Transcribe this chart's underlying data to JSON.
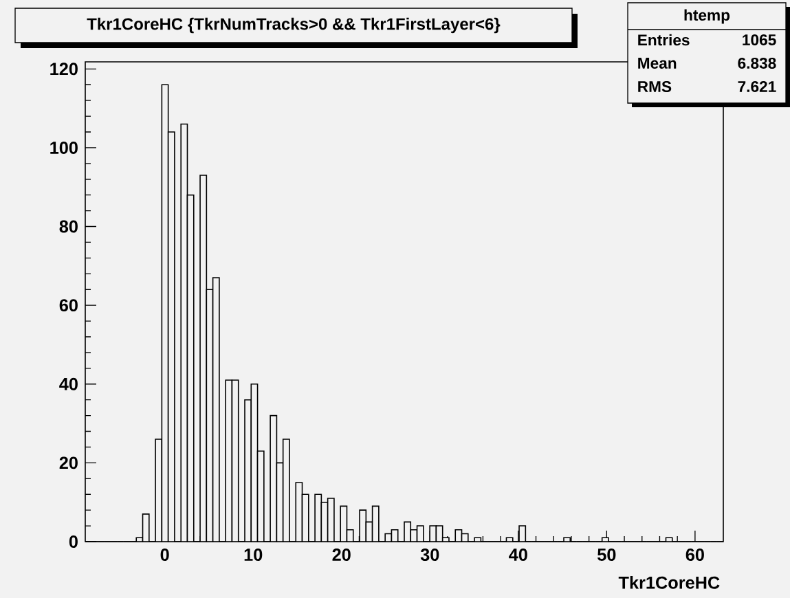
{
  "chart_data": {
    "type": "histogram",
    "title": "Tkr1CoreHC {TkrNumTracks>0 && Tkr1FirstLayer<6}",
    "xlabel": "Tkr1CoreHC",
    "color": "#000000",
    "bins": [
      -9,
      -8.278,
      -7.556,
      -6.834,
      -6.112,
      -5.39,
      -4.668,
      -3.946,
      -3.224,
      -2.502,
      -1.78,
      -1.058,
      -0.336,
      0.386,
      1.108,
      1.83,
      2.552,
      3.274,
      3.996,
      4.718,
      5.44,
      6.162,
      6.884,
      7.606,
      8.328,
      9.05,
      9.772,
      10.494,
      11.216,
      11.938,
      12.66,
      13.382,
      14.104,
      14.826,
      15.548,
      16.27,
      16.992,
      17.714,
      18.436,
      19.158,
      19.88,
      20.602,
      21.324,
      22.046,
      22.768,
      23.49,
      24.212,
      24.934,
      25.656,
      26.378,
      27.1,
      27.822,
      28.544,
      29.266,
      29.988,
      30.71,
      31.432,
      32.154,
      32.876,
      33.598,
      34.32,
      35.042,
      35.764,
      36.486,
      37.208,
      37.93,
      38.652,
      39.374,
      40.096,
      40.818,
      41.54,
      42.262,
      42.984,
      43.706,
      44.428,
      45.15,
      45.872,
      46.594,
      47.316,
      48.038,
      48.76,
      49.482,
      50.204,
      50.926,
      51.648,
      52.37,
      53.092,
      53.814,
      54.536,
      55.258,
      55.98,
      56.702,
      57.424,
      58.146,
      58.868,
      59.59,
      60.312,
      61.034,
      61.756,
      62.478,
      63.2
    ],
    "values": [
      0,
      0,
      0,
      0,
      0,
      0,
      0,
      0,
      1,
      7,
      0,
      26,
      116,
      104,
      0,
      106,
      88,
      0,
      93,
      64,
      67,
      0,
      41,
      41,
      0,
      36,
      40,
      23,
      0,
      32,
      20,
      26,
      0,
      15,
      12,
      0,
      12,
      10,
      11,
      0,
      9,
      3,
      0,
      8,
      5,
      9,
      0,
      2,
      3,
      0,
      5,
      3,
      4,
      0,
      4,
      4,
      1,
      0,
      3,
      2,
      0,
      1,
      0,
      0,
      0,
      0,
      1,
      0,
      4,
      0,
      0,
      0,
      0,
      0,
      0,
      1,
      0,
      0,
      0,
      0,
      0,
      1,
      0,
      0,
      0,
      0,
      0,
      0,
      0,
      0,
      0,
      1,
      0,
      0,
      0,
      0,
      0,
      0,
      0,
      0
    ],
    "xlim": [
      -9,
      63.2
    ],
    "ylim": [
      0,
      121.8
    ],
    "xticks": [
      0,
      10,
      20,
      30,
      40,
      50,
      60
    ],
    "yticks": [
      0,
      20,
      40,
      60,
      80,
      100,
      120
    ],
    "annotations": [
      "htemp",
      "Entries",
      "1065",
      "Mean",
      "6.838",
      "RMS",
      "7.621"
    ]
  }
}
